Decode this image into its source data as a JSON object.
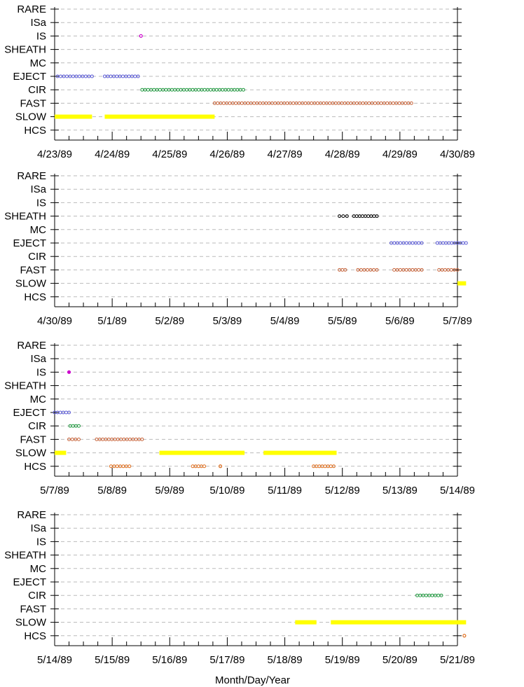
{
  "chart_data": {
    "type": "scatter",
    "categories": [
      "RARE",
      "ISa",
      "IS",
      "SHEATH",
      "MC",
      "EJECT",
      "CIR",
      "FAST",
      "SLOW",
      "HCS"
    ],
    "colors": {
      "RARE": "#000000",
      "ISa": "#000000",
      "IS": "#cc00cc",
      "SHEATH": "#000000",
      "MC": "#000000",
      "EJECT": "#5a5ad6",
      "CIR": "#1f9a3f",
      "FAST": "#c8643a",
      "SLOW": "#ffff00",
      "HCS": "#e07020"
    },
    "xlabel": "Month/Day/Year",
    "grid": "dashed-horizontal",
    "panels": [
      {
        "date_labels": [
          "4/23/89",
          "4/24/89",
          "4/25/89",
          "4/26/89",
          "4/27/89",
          "4/28/89",
          "4/29/89",
          "4/30/89"
        ],
        "xlim": [
          0,
          7
        ],
        "segments": [
          {
            "cat": "IS",
            "x": [
              1.5,
              1.5
            ]
          },
          {
            "cat": "EJECT",
            "x": [
              0.05,
              0.65
            ]
          },
          {
            "cat": "EJECT",
            "x": [
              0.87,
              1.45
            ]
          },
          {
            "cat": "CIR",
            "x": [
              1.52,
              3.28
            ]
          },
          {
            "cat": "FAST",
            "x": [
              2.78,
              6.2
            ]
          },
          {
            "cat": "SLOW",
            "x": [
              0.0,
              0.65
            ]
          },
          {
            "cat": "SLOW",
            "x": [
              0.87,
              2.78
            ]
          }
        ]
      },
      {
        "date_labels": [
          "4/30/89",
          "5/1/89",
          "5/2/89",
          "5/3/89",
          "5/4/89",
          "5/5/89",
          "5/6/89",
          "5/7/89"
        ],
        "xlim": [
          0,
          7
        ],
        "segments": [
          {
            "cat": "SHEATH",
            "x": [
              4.95,
              5.08
            ]
          },
          {
            "cat": "SHEATH",
            "x": [
              5.2,
              5.6
            ]
          },
          {
            "cat": "EJECT",
            "x": [
              5.85,
              6.38
            ]
          },
          {
            "cat": "EJECT",
            "x": [
              6.65,
              7.15
            ]
          },
          {
            "cat": "FAST",
            "x": [
              4.95,
              5.05
            ]
          },
          {
            "cat": "FAST",
            "x": [
              5.27,
              5.6
            ]
          },
          {
            "cat": "FAST",
            "x": [
              5.9,
              6.38
            ]
          },
          {
            "cat": "FAST",
            "x": [
              6.68,
              7.0
            ]
          },
          {
            "cat": "SLOW",
            "x": [
              7.0,
              7.15
            ]
          }
        ]
      },
      {
        "date_labels": [
          "5/7/89",
          "5/8/89",
          "5/9/89",
          "5/10/89",
          "5/11/89",
          "5/12/89",
          "5/13/89",
          "5/14/89"
        ],
        "xlim": [
          0,
          7
        ],
        "segments": [
          {
            "cat": "IS",
            "x": [
              0.25,
              0.25
            ]
          },
          {
            "cat": "EJECT",
            "x": [
              0.0,
              0.25
            ]
          },
          {
            "cat": "CIR",
            "x": [
              0.27,
              0.42
            ]
          },
          {
            "cat": "FAST",
            "x": [
              0.25,
              0.42
            ]
          },
          {
            "cat": "FAST",
            "x": [
              0.73,
              1.52
            ]
          },
          {
            "cat": "SLOW",
            "x": [
              0.0,
              0.2
            ]
          },
          {
            "cat": "SLOW",
            "x": [
              1.82,
              3.3
            ]
          },
          {
            "cat": "SLOW",
            "x": [
              3.63,
              4.9
            ]
          },
          {
            "cat": "HCS",
            "x": [
              0.98,
              1.3
            ]
          },
          {
            "cat": "HCS",
            "x": [
              2.4,
              2.6
            ]
          },
          {
            "cat": "HCS",
            "x": [
              2.88,
              2.88
            ]
          },
          {
            "cat": "HCS",
            "x": [
              4.5,
              4.85
            ]
          }
        ]
      },
      {
        "date_labels": [
          "5/14/89",
          "5/15/89",
          "5/16/89",
          "5/17/89",
          "5/18/89",
          "5/19/89",
          "5/20/89",
          "5/21/89"
        ],
        "xlim": [
          0,
          7
        ],
        "segments": [
          {
            "cat": "CIR",
            "x": [
              6.3,
              6.72
            ]
          },
          {
            "cat": "SLOW",
            "x": [
              4.18,
              4.55
            ]
          },
          {
            "cat": "SLOW",
            "x": [
              4.8,
              7.15
            ]
          },
          {
            "cat": "HCS",
            "x": [
              7.12,
              7.12
            ]
          }
        ]
      }
    ]
  }
}
